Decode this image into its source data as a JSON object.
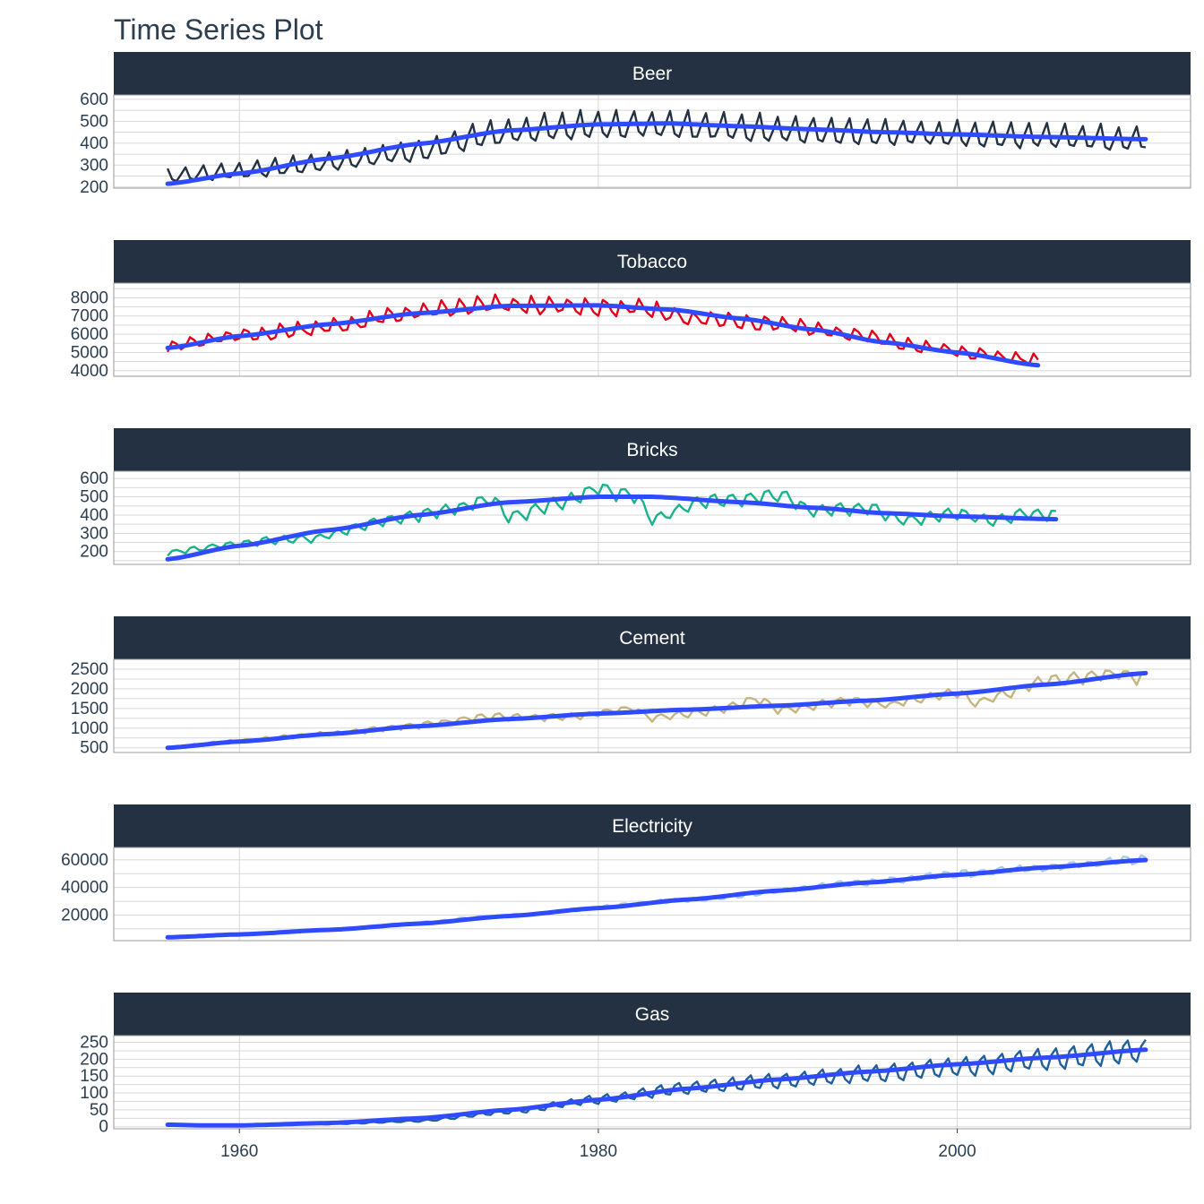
{
  "title": "Time Series Plot",
  "colors": {
    "strip_bg": "#233142",
    "trend": "#2f4bff",
    "grid": "#d7d7d7",
    "border": "#9a9a9a"
  },
  "chart_data": {
    "type": "line",
    "x_range": [
      1953,
      2013
    ],
    "x_ticks": [
      1960,
      1980,
      2000
    ],
    "x_tick_labels": [
      "1960",
      "1980",
      "2000"
    ],
    "facets": [
      {
        "name": "Beer",
        "color": "#233142",
        "x_start": 1956,
        "x_end": 2010.5,
        "y_range": [
          195,
          620
        ],
        "y_ticks": [
          200,
          300,
          400,
          500,
          600
        ],
        "seasonal": [
          1.15,
          0.93,
          0.9,
          1.02
        ],
        "level": [
          [
            1956,
            250
          ],
          [
            1960,
            270
          ],
          [
            1965,
            310
          ],
          [
            1970,
            360
          ],
          [
            1974,
            440
          ],
          [
            1978,
            470
          ],
          [
            1982,
            480
          ],
          [
            1986,
            470
          ],
          [
            1990,
            460
          ],
          [
            1995,
            445
          ],
          [
            2000,
            435
          ],
          [
            2005,
            425
          ],
          [
            2010.5,
            415
          ]
        ],
        "trend": [
          [
            1956,
            215
          ],
          [
            1960,
            262
          ],
          [
            1965,
            330
          ],
          [
            1970,
            397
          ],
          [
            1975,
            458
          ],
          [
            1980,
            486
          ],
          [
            1984,
            490
          ],
          [
            1988,
            477
          ],
          [
            1992,
            463
          ],
          [
            1996,
            450
          ],
          [
            2000,
            440
          ],
          [
            2005,
            428
          ],
          [
            2010.5,
            418
          ]
        ]
      },
      {
        "name": "Tobacco",
        "color": "#e3001b",
        "x_start": 1956,
        "x_end": 2004.5,
        "y_range": [
          3700,
          8800
        ],
        "y_ticks": [
          4000,
          5000,
          6000,
          7000,
          8000
        ],
        "seasonal": [
          0.96,
          1.06,
          1.02,
          0.96
        ],
        "level": [
          [
            1956,
            5350
          ],
          [
            1960,
            5900
          ],
          [
            1965,
            6400
          ],
          [
            1970,
            7200
          ],
          [
            1974,
            7600
          ],
          [
            1978,
            7500
          ],
          [
            1982,
            7400
          ],
          [
            1986,
            6800
          ],
          [
            1990,
            6600
          ],
          [
            1994,
            6000
          ],
          [
            1998,
            5300
          ],
          [
            2002,
            4800
          ],
          [
            2004.5,
            4600
          ]
        ],
        "trend": [
          [
            1956,
            5250
          ],
          [
            1960,
            5900
          ],
          [
            1965,
            6550
          ],
          [
            1970,
            7150
          ],
          [
            1975,
            7550
          ],
          [
            1980,
            7580
          ],
          [
            1984,
            7350
          ],
          [
            1988,
            6850
          ],
          [
            1992,
            6250
          ],
          [
            1996,
            5550
          ],
          [
            2000,
            5000
          ],
          [
            2004.5,
            4300
          ]
        ]
      },
      {
        "name": "Bricks",
        "color": "#18b38a",
        "x_start": 1956,
        "x_end": 2005.5,
        "y_range": [
          130,
          640
        ],
        "y_ticks": [
          200,
          300,
          400,
          500,
          600
        ],
        "seasonal": [
          0.92,
          1.04,
          1.06,
          0.98
        ],
        "level": [
          [
            1956,
            195
          ],
          [
            1960,
            245
          ],
          [
            1962,
            265
          ],
          [
            1964,
            270
          ],
          [
            1968,
            370
          ],
          [
            1972,
            430
          ],
          [
            1974,
            490
          ],
          [
            1975,
            390
          ],
          [
            1978,
            470
          ],
          [
            1980,
            545
          ],
          [
            1982,
            510
          ],
          [
            1983,
            380
          ],
          [
            1986,
            480
          ],
          [
            1988,
            480
          ],
          [
            1990,
            510
          ],
          [
            1992,
            420
          ],
          [
            1995,
            440
          ],
          [
            1997,
            370
          ],
          [
            2000,
            410
          ],
          [
            2002,
            370
          ],
          [
            2004,
            410
          ],
          [
            2005.5,
            400
          ]
        ],
        "trend": [
          [
            1956,
            158
          ],
          [
            1960,
            232
          ],
          [
            1965,
            318
          ],
          [
            1970,
            400
          ],
          [
            1975,
            470
          ],
          [
            1980,
            500
          ],
          [
            1983,
            500
          ],
          [
            1988,
            470
          ],
          [
            1992,
            440
          ],
          [
            1996,
            410
          ],
          [
            2000,
            393
          ],
          [
            2005.5,
            377
          ]
        ]
      },
      {
        "name": "Cement",
        "color": "#c4b47e",
        "x_start": 1956,
        "x_end": 2010.5,
        "y_range": [
          380,
          2750
        ],
        "y_ticks": [
          500,
          1000,
          1500,
          2000,
          2500
        ],
        "seasonal": [
          0.93,
          1.03,
          1.05,
          0.99
        ],
        "level": [
          [
            1956,
            500
          ],
          [
            1960,
            680
          ],
          [
            1965,
            860
          ],
          [
            1970,
            1080
          ],
          [
            1974,
            1300
          ],
          [
            1978,
            1280
          ],
          [
            1982,
            1500
          ],
          [
            1983,
            1250
          ],
          [
            1986,
            1420
          ],
          [
            1989,
            1750
          ],
          [
            1990,
            1450
          ],
          [
            1994,
            1700
          ],
          [
            1996,
            1600
          ],
          [
            2000,
            1900
          ],
          [
            2001,
            1650
          ],
          [
            2005,
            2200
          ],
          [
            2009,
            2400
          ],
          [
            2010.5,
            2250
          ]
        ],
        "trend": [
          [
            1956,
            500
          ],
          [
            1960,
            660
          ],
          [
            1965,
            850
          ],
          [
            1970,
            1050
          ],
          [
            1975,
            1230
          ],
          [
            1980,
            1370
          ],
          [
            1985,
            1470
          ],
          [
            1990,
            1570
          ],
          [
            1995,
            1700
          ],
          [
            2000,
            1880
          ],
          [
            2005,
            2110
          ],
          [
            2010.5,
            2400
          ]
        ]
      },
      {
        "name": "Electricity",
        "color": "#a9cbea",
        "x_start": 1956,
        "x_end": 2010.5,
        "y_range": [
          1500,
          69000
        ],
        "y_ticks": [
          20000,
          40000,
          60000
        ],
        "y_tick_labels": [
          "20000",
          "40000",
          "60000"
        ],
        "seasonal": [
          0.97,
          1.04,
          1.04,
          0.97
        ],
        "level": [
          [
            1956,
            4000
          ],
          [
            1965,
            9000
          ],
          [
            1975,
            19500
          ],
          [
            1985,
            31000
          ],
          [
            1995,
            43500
          ],
          [
            2000,
            49500
          ],
          [
            2005,
            54500
          ],
          [
            2010.5,
            60000
          ]
        ],
        "trend": [
          [
            1956,
            3900
          ],
          [
            1960,
            6000
          ],
          [
            1965,
            9300
          ],
          [
            1970,
            13800
          ],
          [
            1975,
            19300
          ],
          [
            1980,
            25100
          ],
          [
            1985,
            31300
          ],
          [
            1990,
            37700
          ],
          [
            1995,
            43600
          ],
          [
            2000,
            49200
          ],
          [
            2005,
            54600
          ],
          [
            2010.5,
            59900
          ]
        ]
      },
      {
        "name": "Gas",
        "color": "#1f5f9a",
        "x_start": 1956,
        "x_end": 2010.5,
        "y_range": [
          -6,
          270
        ],
        "y_ticks": [
          0,
          50,
          100,
          150,
          200,
          250
        ],
        "seasonal": [
          0.86,
          1.08,
          1.16,
          0.92
        ],
        "level": [
          [
            1956,
            5
          ],
          [
            1960,
            5
          ],
          [
            1965,
            8
          ],
          [
            1970,
            17
          ],
          [
            1975,
            45
          ],
          [
            1980,
            80
          ],
          [
            1985,
            115
          ],
          [
            1990,
            135
          ],
          [
            1995,
            155
          ],
          [
            2000,
            175
          ],
          [
            2005,
            200
          ],
          [
            2010.5,
            225
          ]
        ],
        "trend": [
          [
            1956,
            6
          ],
          [
            1958,
            4
          ],
          [
            1960,
            4
          ],
          [
            1965,
            11
          ],
          [
            1970,
            25
          ],
          [
            1975,
            50
          ],
          [
            1980,
            80
          ],
          [
            1985,
            113
          ],
          [
            1990,
            140
          ],
          [
            1995,
            163
          ],
          [
            2000,
            185
          ],
          [
            2005,
            205
          ],
          [
            2010.5,
            228
          ]
        ]
      }
    ]
  }
}
